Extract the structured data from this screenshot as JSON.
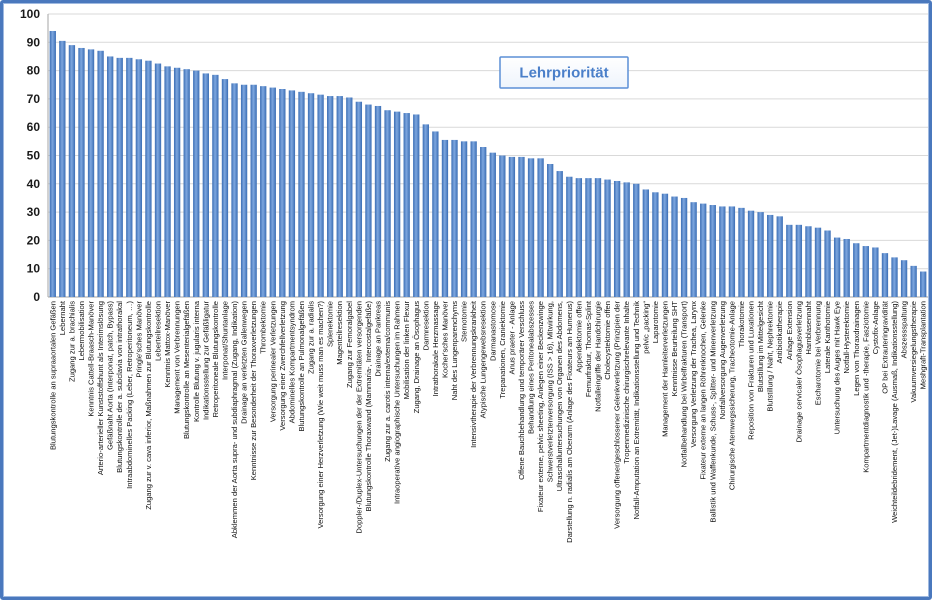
{
  "chart_data": {
    "type": "bar",
    "title": "Lehrpriorität",
    "xlabel": "",
    "ylabel": "",
    "ylim": [
      0,
      100
    ],
    "yticks": [
      0,
      10,
      20,
      30,
      40,
      50,
      60,
      70,
      80,
      90,
      100
    ],
    "grid": true,
    "categories": [
      "Blutungskontrolle an supraaortalen Gefäßen",
      "Lebernaht",
      "Zugang zur a. brachialis",
      "Lebermobilisation",
      "Kenntnis Cattell-Braasch-Manöver",
      "Arterio-arterieller Kunststoffshunt als Interimslösung",
      "Gefäßnaht Aorta (Interponat, patch, Bypass)",
      "Blutungskontrolle der a. subclavia von intrathorakal",
      "Intraabdominelles Packing (Leber, Retroperitoneum, …)",
      "Pringle'sches Manöver",
      "Zugang zur v. cava inferior, Maßnahmen zur Blutungskontrolle",
      "Leberteilresektion",
      "Kenntnis Mattox-Manöver",
      "Management von Verbrennungen",
      "Blutungskontrolle an Mesenterialgefäßen",
      "Kontrolle Blutung v. jugularis interna",
      "Indikationsstellung zur Gefäßligatur",
      "Retroperitoneale Blutungskontrolle",
      "Interponat/Shuntanlage",
      "Abklemmen der Aorta supra- und subdiaphragmal (Zugang, Indikation)",
      "Drainage an verletzten Gallenwegen",
      "Kenntnisse zur Besonderheit der Thoraxverletzungen",
      "Thrombektomie",
      "Versorgung perinealer Verletzungen",
      "Versorgung einer Zwerchfellverletzung",
      "Abdominelles Kompartmentsyndrom",
      "Blutungskontrolle an Pulmonalgefäßen",
      "Zugang zur a. radialis",
      "Versorgung einer Herzverletzung (Wie weit muss man es machen?)",
      "Splenektomie",
      "Magenteilresektion",
      "Zugang zur Femoralgabel",
      "Doppler-/Duplex-Untersuchungen der der Extremitäten versorgenden",
      "Blutungskontrolle Thoraxwand (Mammaria-, Intercostalgefäße)",
      "Drainage an Pankreas",
      "Zugang zur a. carotis interna/externa/communis",
      "Intraoperative angiographische Untersuchungen im Rahmen",
      "Mobilisation der linken Flexur",
      "Zugang, Drainage an Ösophagus",
      "Darmresektion",
      "Intrathorakale Herzmassage",
      "Kocher'sches Manöver",
      "Naht des Lungenparenchyms",
      "Sternotomie",
      "Intensivtherapie der Verbrennungskrankheit",
      "Atypische Lungengewebsresektion",
      "Darmanastomose",
      "Trepanationen, Craniektomie",
      "Anus praeter - Anlage",
      "Offene Bauchbehandlung und temporärer Verschluss",
      "Behandlung eines Peritonealabszesses",
      "Fixateur externe, pelvic sheeting, Anlegen einer Beckenzwinge",
      "Schwerstverletztenversorgung (ISS > 16), Mitwirkung,",
      "Ultraschalluntersuchungen von Organen des Abdomens,",
      "Darstellung n. radialis am Oberarm (Anlage des Fixateurs am Humerus)",
      "Appendektomie offen",
      "Femurfraktur, Thomas-Splint",
      "Notfalleingriffe der Handchirurgie",
      "Cholecystektomie offen",
      "Versorgung offener/geschlossener Gelenkverletzung (Prinzipien der",
      "Tropenmedizinische chirurgischrelevante Inhalte",
      "Notfall-Amputation an Extremität, Indikationsstellung und Technik",
      "pelvic „packing“",
      "Laparotomie",
      "Management der Harnleiterverletzungen",
      "Kenntnisse Beurteilung SHT",
      "Notfallbehandlung bei Wirbelfrakturen (Transport)",
      "Versorgung Verletzung der Trachea, Larynx",
      "Fixateur externe an langen Röhrenknochen, Gelenke",
      "Ballistik und Waffenkunde, Schuss-, Splitter- und Minenverletzung",
      "Notfallversorgung Augenverletzung",
      "Chirurgische Atemwegssicherung, Tracheotomie-Anlage",
      "Thorakotomie",
      "Reposition von Frakturen und Luxationen",
      "Blutstillung im Mittelgesicht",
      "Blutstillung / Naht, Nephrektomie",
      "Antibiotikatherapie",
      "Anlage Extension",
      "Drainage cervicaler Ösophagusverletzung",
      "Harnblasennaht",
      "Escharotomie bei Verbrennung",
      "Laterale Kanthotomie",
      "Untersuchung des Auges mit Hawk Eye",
      "Notfall-Hysterektomie",
      "Legen von Thoraxdrainagen",
      "Kompartmentdiagnostik und -therapie, Fasziotomie",
      "Cystofix-Anlage",
      "OP bei Extrauteringravidität",
      "Weichteildebridement, (Jet-)Lavage (Ausmaß, Indikationsstellung)",
      "Abszessspaltung",
      "Vakuumversiegelungstherapie",
      "Meshgraft-Transplantation"
    ],
    "values": [
      94,
      90.5,
      89,
      88,
      87.5,
      87,
      85,
      84.5,
      84.5,
      84,
      83.5,
      82.5,
      81.5,
      81,
      80.5,
      80,
      79,
      78.5,
      77,
      75.5,
      75,
      75,
      74.5,
      74,
      73.5,
      73,
      72.5,
      72,
      71.5,
      71,
      71,
      70.5,
      69,
      68,
      67.5,
      66,
      65.5,
      65,
      64.5,
      61,
      58.5,
      55.5,
      55.5,
      55,
      55,
      53,
      51,
      50,
      49.5,
      49.5,
      49,
      49,
      47,
      44.5,
      42.5,
      42,
      42,
      42,
      41.5,
      41,
      40.5,
      40,
      38,
      37,
      36.5,
      35.5,
      35,
      33.5,
      33,
      32.5,
      32,
      32,
      31.5,
      30.5,
      30,
      29,
      28.5,
      25.5,
      25.5,
      25,
      24.5,
      23.5,
      21,
      20.5,
      19,
      18,
      17.5,
      15.5,
      14,
      13,
      11,
      9
    ]
  },
  "colors": {
    "bar_dark": "#3a6db4",
    "bar_light": "#7ea7df",
    "frame": "#4a78bd",
    "grid": "#d9d9d9",
    "axis": "#a6a6a6",
    "title_text": "#4a7fc9",
    "title_border": "#5b8fd6"
  }
}
